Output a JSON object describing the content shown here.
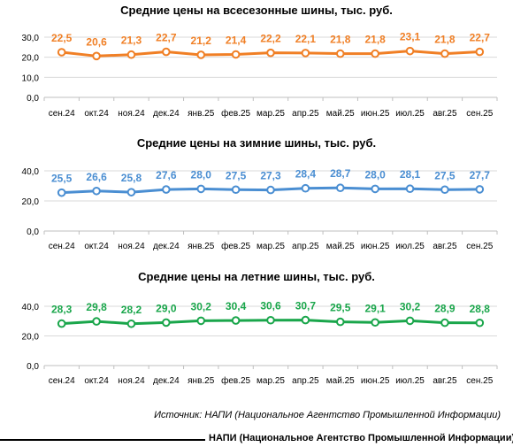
{
  "chart_data": [
    {
      "type": "line",
      "title": "Средние цены на всесезонные шины, тыс. руб.",
      "color": "#f07f25",
      "ylim": [
        0,
        30
      ],
      "yticks": [
        "0,0",
        "10,0",
        "20,0",
        "30,0"
      ],
      "categories": [
        "сен.24",
        "окт.24",
        "ноя.24",
        "дек.24",
        "янв.25",
        "фев.25",
        "мар.25",
        "апр.25",
        "май.25",
        "июн.25",
        "июл.25",
        "авг.25",
        "сен.25"
      ],
      "values": [
        22.5,
        20.6,
        21.3,
        22.7,
        21.2,
        21.4,
        22.2,
        22.1,
        21.8,
        21.8,
        23.1,
        21.8,
        22.7
      ],
      "labels": [
        "22,5",
        "20,6",
        "21,3",
        "22,7",
        "21,2",
        "21,4",
        "22,2",
        "22,1",
        "21,8",
        "21,8",
        "23,1",
        "21,8",
        "22,7"
      ],
      "grid": true
    },
    {
      "type": "line",
      "title": "Средние цены на зимние шины, тыс. руб.",
      "color": "#4a8ed2",
      "ylim": [
        0,
        40
      ],
      "yticks": [
        "0,0",
        "20,0",
        "40,0"
      ],
      "categories": [
        "сен.24",
        "окт.24",
        "ноя.24",
        "дек.24",
        "янв.25",
        "фев.25",
        "мар.25",
        "апр.25",
        "май.25",
        "июн.25",
        "июл.25",
        "авг.25",
        "сен.25"
      ],
      "values": [
        25.5,
        26.6,
        25.8,
        27.6,
        28.0,
        27.5,
        27.3,
        28.4,
        28.7,
        28.0,
        28.1,
        27.5,
        27.7
      ],
      "labels": [
        "25,5",
        "26,6",
        "25,8",
        "27,6",
        "28,0",
        "27,5",
        "27,3",
        "28,4",
        "28,7",
        "28,0",
        "28,1",
        "27,5",
        "27,7"
      ],
      "grid": true
    },
    {
      "type": "line",
      "title": "Средние цены на летние шины, тыс. руб.",
      "color": "#1aa64b",
      "ylim": [
        0,
        40
      ],
      "yticks": [
        "0,0",
        "20,0",
        "40,0"
      ],
      "categories": [
        "сен.24",
        "окт.24",
        "ноя.24",
        "дек.24",
        "янв.25",
        "фев.25",
        "мар.25",
        "апр.25",
        "май.25",
        "июн.25",
        "июл.25",
        "авг.25",
        "сен.25"
      ],
      "values": [
        28.3,
        29.8,
        28.2,
        29.0,
        30.2,
        30.4,
        30.6,
        30.7,
        29.5,
        29.1,
        30.2,
        28.9,
        28.8
      ],
      "labels": [
        "28,3",
        "29,8",
        "28,2",
        "29,0",
        "30,2",
        "30,4",
        "30,6",
        "30,7",
        "29,5",
        "29,1",
        "30,2",
        "28,9",
        "28,8"
      ],
      "grid": true
    }
  ],
  "source": "Источник: НАПИ (Национальное Агентство Промышленной Информации)",
  "footer": "НАПИ (Национальное Агентство Промышленной Информации)"
}
